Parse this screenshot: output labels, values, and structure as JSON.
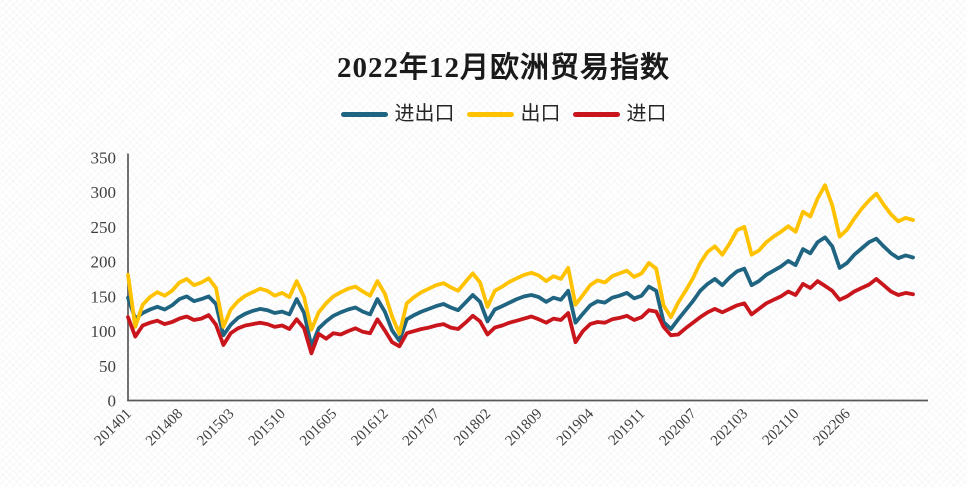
{
  "chart": {
    "title": "2022年12月欧洲贸易指数"
  },
  "colors": {
    "axis": "#595959",
    "tick_text": "#3F3F3F",
    "title_text": "#1A1A1A",
    "series_total": "#1F6480",
    "series_export": "#FFC200",
    "series_import": "#C9161D"
  },
  "chart_data": {
    "type": "line",
    "title": "2022年12月欧洲贸易指数",
    "xlabel": "",
    "ylabel": "",
    "ylim": [
      0,
      350
    ],
    "y_ticks": [
      0,
      50,
      100,
      150,
      200,
      250,
      300,
      350
    ],
    "grid": false,
    "legend_position": "top",
    "note": "Monthly points from 201401 to 202212 (108 points); values estimated from pixel positions.",
    "n_points": 108,
    "x_tick_labels": [
      "201401",
      "201408",
      "201503",
      "201510",
      "201605",
      "201612",
      "201707",
      "201802",
      "201809",
      "201904",
      "201911",
      "202007",
      "202103",
      "202110",
      "202206"
    ],
    "x_tick_indices": [
      0,
      7,
      14,
      21,
      28,
      35,
      42,
      49,
      56,
      63,
      70,
      77,
      84,
      91,
      98
    ],
    "series": [
      {
        "name": "进出口",
        "color": "#1F6480",
        "values": [
          148,
          118,
          126,
          131,
          135,
          131,
          137,
          146,
          150,
          143,
          146,
          150,
          139,
          94,
          109,
          119,
          125,
          129,
          132,
          130,
          126,
          128,
          124,
          146,
          126,
          78,
          104,
          114,
          122,
          127,
          131,
          134,
          128,
          124,
          146,
          128,
          101,
          86,
          117,
          123,
          128,
          132,
          136,
          139,
          134,
          130,
          141,
          152,
          142,
          114,
          131,
          136,
          141,
          146,
          150,
          152,
          149,
          142,
          148,
          145,
          158,
          112,
          125,
          137,
          143,
          141,
          148,
          151,
          155,
          147,
          151,
          164,
          158,
          113,
          103,
          117,
          130,
          143,
          158,
          168,
          175,
          166,
          177,
          186,
          190,
          166,
          172,
          181,
          187,
          193,
          201,
          195,
          218,
          212,
          228,
          235,
          222,
          191,
          198,
          210,
          219,
          228,
          233,
          222,
          212,
          205,
          209,
          206
        ]
      },
      {
        "name": "出口",
        "color": "#FFC200",
        "values": [
          181,
          106,
          138,
          149,
          156,
          151,
          158,
          170,
          175,
          166,
          170,
          176,
          162,
          106,
          131,
          143,
          151,
          156,
          161,
          158,
          151,
          155,
          149,
          172,
          149,
          102,
          127,
          140,
          150,
          156,
          161,
          164,
          157,
          151,
          172,
          154,
          121,
          96,
          140,
          149,
          156,
          161,
          166,
          169,
          163,
          158,
          171,
          183,
          170,
          135,
          158,
          164,
          171,
          176,
          181,
          184,
          180,
          172,
          179,
          175,
          191,
          138,
          152,
          166,
          173,
          170,
          179,
          183,
          187,
          178,
          183,
          198,
          190,
          137,
          120,
          141,
          158,
          176,
          198,
          214,
          222,
          210,
          226,
          245,
          250,
          210,
          216,
          228,
          236,
          243,
          251,
          243,
          272,
          265,
          291,
          310,
          281,
          236,
          246,
          262,
          276,
          288,
          298,
          282,
          268,
          258,
          263,
          260
        ]
      },
      {
        "name": "进口",
        "color": "#C9161D",
        "values": [
          120,
          92,
          108,
          112,
          115,
          110,
          113,
          118,
          121,
          116,
          118,
          123,
          109,
          80,
          97,
          104,
          108,
          110,
          112,
          110,
          106,
          108,
          103,
          117,
          104,
          68,
          96,
          89,
          97,
          95,
          100,
          104,
          99,
          97,
          117,
          101,
          84,
          78,
          97,
          100,
          103,
          105,
          108,
          110,
          105,
          103,
          112,
          122,
          114,
          95,
          105,
          108,
          112,
          115,
          118,
          121,
          117,
          112,
          118,
          116,
          126,
          84,
          100,
          110,
          113,
          112,
          117,
          119,
          122,
          116,
          120,
          130,
          128,
          106,
          94,
          95,
          104,
          112,
          120,
          127,
          132,
          127,
          132,
          137,
          140,
          124,
          132,
          140,
          145,
          150,
          157,
          152,
          168,
          162,
          172,
          165,
          158,
          145,
          150,
          157,
          162,
          167,
          175,
          166,
          157,
          152,
          155,
          153
        ]
      }
    ]
  }
}
